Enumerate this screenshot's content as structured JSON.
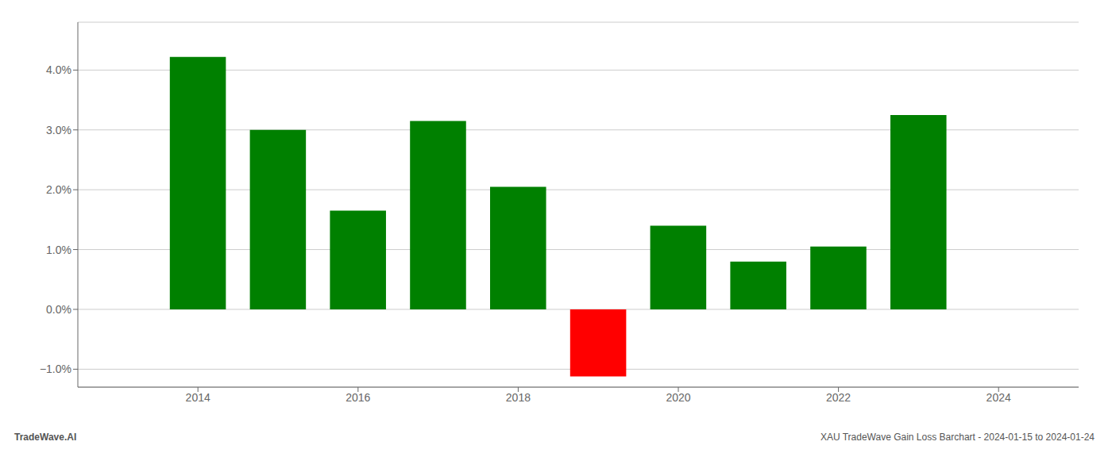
{
  "chart_data": {
    "type": "bar",
    "x": [
      2014,
      2015,
      2016,
      2017,
      2018,
      2019,
      2020,
      2021,
      2022,
      2023
    ],
    "values": [
      0.0422,
      0.03,
      0.0165,
      0.0315,
      0.0205,
      -0.0112,
      0.014,
      0.008,
      0.0105,
      0.0325
    ],
    "colors": [
      "#008000",
      "#008000",
      "#008000",
      "#008000",
      "#008000",
      "#ff0000",
      "#008000",
      "#008000",
      "#008000",
      "#008000"
    ],
    "xlim": [
      2012.5,
      2025.0
    ],
    "xticks": [
      2014,
      2016,
      2018,
      2020,
      2022,
      2024
    ],
    "ylim": [
      -0.013,
      0.048
    ],
    "yticks": [
      {
        "value": -0.01,
        "label": "−1.0%"
      },
      {
        "value": 0.0,
        "label": "0.0%"
      },
      {
        "value": 0.01,
        "label": "1.0%"
      },
      {
        "value": 0.02,
        "label": "2.0%"
      },
      {
        "value": 0.03,
        "label": "3.0%"
      },
      {
        "value": 0.04,
        "label": "4.0%"
      }
    ],
    "grid": true,
    "annotations": [
      "TradeWave.AI",
      "XAU TradeWave Gain Loss Barchart - 2024-01-15 to 2024-01-24"
    ]
  }
}
